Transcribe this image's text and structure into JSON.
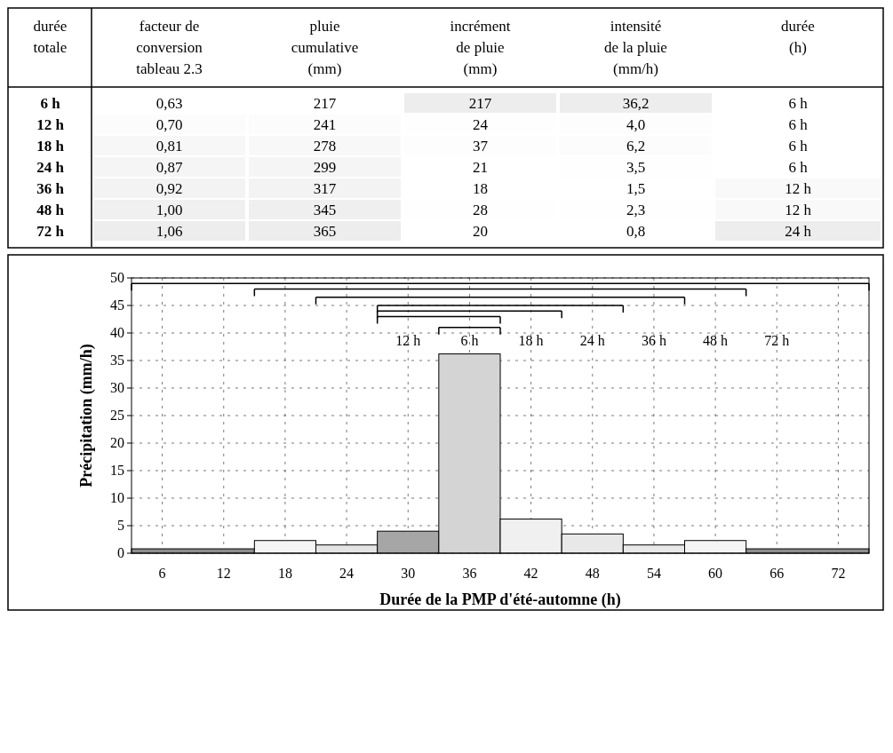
{
  "chart_data": [
    {
      "type": "heatmap",
      "ylabel": "durée totale",
      "categories": [
        "facteur de\nconversion\ntableau 2.3",
        "pluie\ncumulative\n(mm)",
        "incrément\nde pluie\n(mm)",
        "intensité\nde la pluie\n(mm/h)",
        "durée\n(h)"
      ],
      "y_categories": [
        "6 h",
        "12 h",
        "18 h",
        "24 h",
        "36 h",
        "48 h",
        "72 h"
      ],
      "cells": [
        [
          0.63,
          217,
          217,
          36.2,
          6
        ],
        [
          0.7,
          241,
          24,
          4.0,
          6
        ],
        [
          0.81,
          278,
          37,
          6.2,
          6
        ],
        [
          0.87,
          299,
          21,
          3.5,
          6
        ],
        [
          0.92,
          317,
          18,
          1.5,
          12
        ],
        [
          1.0,
          345,
          28,
          2.3,
          12
        ],
        [
          1.06,
          365,
          20,
          0.8,
          24
        ]
      ],
      "cell_labels": [
        [
          "0,63",
          "217",
          "217",
          "36,2",
          "6 h"
        ],
        [
          "0,70",
          "241",
          "24",
          "4,0",
          "6 h"
        ],
        [
          "0,81",
          "278",
          "37",
          "6,2",
          "6 h"
        ],
        [
          "0,87",
          "299",
          "21",
          "3,5",
          "6 h"
        ],
        [
          "0,92",
          "317",
          "18",
          "1,5",
          "12 h"
        ],
        [
          "1,00",
          "345",
          "28",
          "2,3",
          "12 h"
        ],
        [
          "1,06",
          "365",
          "20",
          "0,8",
          "24 h"
        ]
      ]
    },
    {
      "type": "histogram",
      "xlabel": "Durée de la PMP d'été-automne (h)",
      "ylabel": "Précipitation (mm/h)",
      "bins": [
        3,
        15,
        21,
        27,
        33,
        39,
        45,
        51,
        57,
        63,
        75
      ],
      "values": [
        0.8,
        2.3,
        1.5,
        4.0,
        36.2,
        6.2,
        3.5,
        1.5,
        2.3,
        0.8
      ],
      "colors": [
        "#8c8c8c",
        "#f4f4f4",
        "#e4e4e4",
        "#a6a6a6",
        "#d4d4d4",
        "#f0f0f0",
        "#e8e8e8",
        "#e8e8e8",
        "#f4f4f4",
        "#8c8c8c"
      ],
      "xlim": [
        3,
        75
      ],
      "xticks": [
        6,
        12,
        18,
        24,
        30,
        36,
        42,
        48,
        54,
        60,
        66,
        72
      ],
      "ylim": [
        0,
        50
      ],
      "yticks": [
        0,
        5,
        10,
        15,
        20,
        25,
        30,
        35,
        40,
        45,
        50
      ],
      "grid": true,
      "series": [
        {
          "type": "line",
          "color": "#000000",
          "x": [
            3,
            75
          ],
          "values": [
            49,
            49
          ]
        },
        {
          "type": "line",
          "color": "#000000",
          "x": [
            15,
            63
          ],
          "values": [
            48,
            48
          ]
        },
        {
          "type": "line",
          "color": "#000000",
          "x": [
            21,
            57
          ],
          "values": [
            46.5,
            46.5
          ]
        },
        {
          "type": "line",
          "color": "#000000",
          "x": [
            27,
            51
          ],
          "values": [
            45,
            45
          ]
        },
        {
          "type": "line",
          "color": "#000000",
          "x": [
            27,
            45
          ],
          "values": [
            44,
            44
          ]
        },
        {
          "type": "line",
          "color": "#000000",
          "x": [
            27,
            39
          ],
          "values": [
            43,
            43
          ]
        },
        {
          "type": "line",
          "color": "#000000",
          "x": [
            33,
            39
          ],
          "values": [
            41,
            41
          ]
        }
      ],
      "annotations": [
        "12 h",
        "6 h",
        "18 h",
        "24 h",
        "36 h",
        "48 h",
        "72 h"
      ]
    }
  ]
}
